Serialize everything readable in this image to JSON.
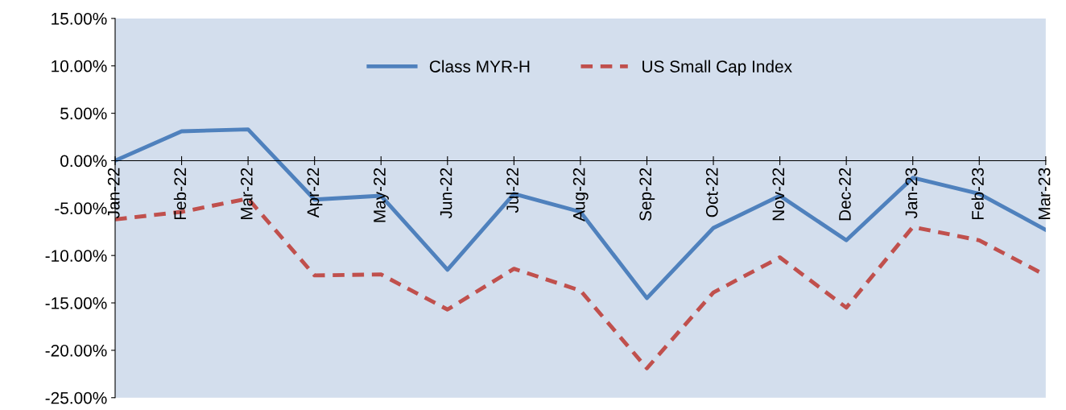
{
  "chart_data": {
    "type": "line",
    "categories": [
      "Jan-22",
      "Feb-22",
      "Mar-22",
      "Apr-22",
      "May-22",
      "Jun-22",
      "Jul-22",
      "Aug-22",
      "Sep-22",
      "Oct-22",
      "Nov-22",
      "Dec-22",
      "Jan-23",
      "Feb-23",
      "Mar-23"
    ],
    "series": [
      {
        "name": "Class MYR-H",
        "color": "#4f81bd",
        "line_style": "solid",
        "values": [
          0,
          3.1,
          3.3,
          -4.1,
          -3.7,
          -11.5,
          -3.5,
          -5.4,
          -14.5,
          -7.1,
          -3.7,
          -8.4,
          -1.8,
          -3.5,
          -7.3
        ]
      },
      {
        "name": "US Small Cap Index",
        "color": "#c0504d",
        "line_style": "dashed",
        "values": [
          -6.2,
          -5.4,
          -4.0,
          -12.1,
          -12.0,
          -15.7,
          -11.4,
          -13.7,
          -21.9,
          -13.9,
          -10.2,
          -15.5,
          -7.0,
          -8.4,
          -12.1
        ]
      }
    ],
    "ylim": [
      -25,
      15
    ],
    "yticks": [
      {
        "value": -25,
        "label": "-25.00%"
      },
      {
        "value": -20,
        "label": "-20.00%"
      },
      {
        "value": -15,
        "label": "-15.00%"
      },
      {
        "value": -10,
        "label": "-10.00%"
      },
      {
        "value": -5,
        "label": "-5.00%"
      },
      {
        "value": 0,
        "label": "0.00%"
      },
      {
        "value": 5,
        "label": "5.00%"
      },
      {
        "value": 10,
        "label": "10.00%"
      },
      {
        "value": 15,
        "label": "15.00%"
      }
    ],
    "grid": false,
    "legend": "top",
    "marker": "none"
  }
}
